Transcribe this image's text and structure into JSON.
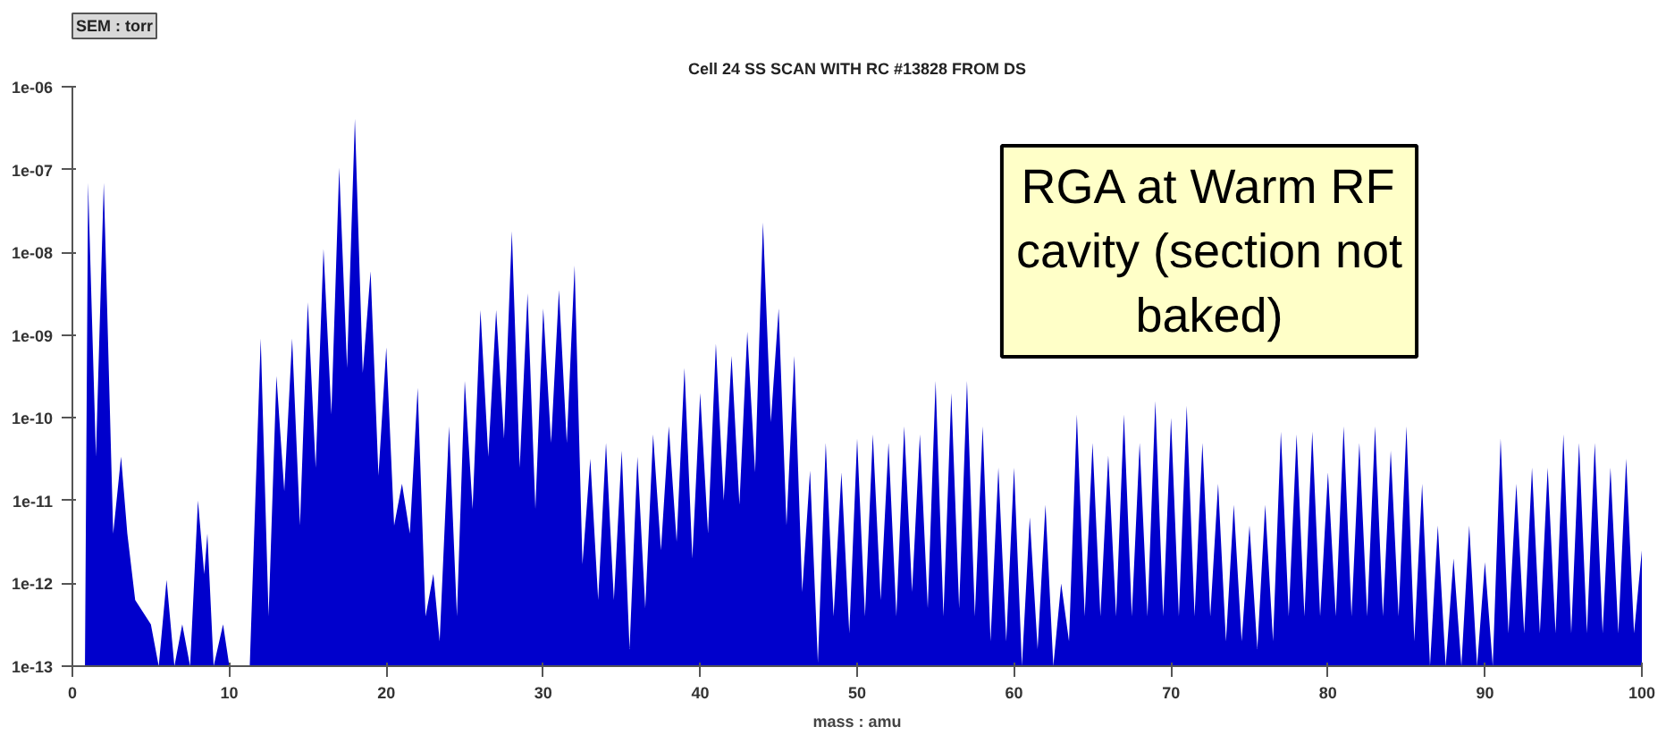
{
  "chart_data": {
    "type": "area",
    "title": "Cell 24 SS SCAN WITH RC #13828 FROM DS",
    "xlabel": "mass : amu",
    "ylabel": "SEM : torr",
    "annotations": [
      "RGA at Warm RF cavity (section not baked)"
    ],
    "log": "y",
    "grid": false,
    "xlim": [
      0,
      100
    ],
    "xticks": [
      0,
      10,
      20,
      30,
      40,
      50,
      60,
      70,
      80,
      90,
      100
    ],
    "ylim": [
      1e-13,
      1e-06
    ],
    "yticks": [
      {
        "value": 1e-13,
        "label": "1e-13"
      },
      {
        "value": 1e-12,
        "label": "1e-12"
      },
      {
        "value": 1e-11,
        "label": "1e-11"
      },
      {
        "value": 1e-10,
        "label": "1e-10"
      },
      {
        "value": 1e-09,
        "label": "1e-09"
      },
      {
        "value": 1e-08,
        "label": "1e-08"
      },
      {
        "value": 1e-07,
        "label": "1e-07"
      },
      {
        "value": 1e-06,
        "label": "1e-06"
      }
    ],
    "x": [
      0.8,
      1,
      1.5,
      2,
      2.6,
      3.1,
      3.5,
      4,
      5,
      5.5,
      6,
      6.5,
      7,
      7.5,
      8,
      8.4,
      8.6,
      9,
      9.6,
      10,
      11.3,
      12,
      12.5,
      13,
      13.5,
      14,
      14.5,
      15,
      15.5,
      16,
      16.5,
      17,
      17.5,
      18,
      18.5,
      19,
      19.5,
      20,
      20.5,
      21,
      21.5,
      22,
      22.5,
      23,
      23.4,
      24,
      24.5,
      25,
      25.5,
      26,
      26.5,
      27,
      27.5,
      28,
      28.5,
      29,
      29.5,
      30,
      30.5,
      31,
      31.5,
      32,
      32.5,
      33,
      33.5,
      34,
      34.5,
      35,
      35.5,
      36,
      36.5,
      37,
      37.5,
      38,
      38.5,
      39,
      39.5,
      40,
      40.5,
      41,
      41.5,
      42,
      42.5,
      43,
      43.5,
      44,
      44.5,
      45,
      45.5,
      46,
      46.5,
      47,
      47.5,
      48,
      48.5,
      49,
      49.5,
      50,
      50.5,
      51,
      51.5,
      52,
      52.5,
      53,
      53.5,
      54,
      54.5,
      55,
      55.5,
      56,
      56.5,
      57,
      57.5,
      58,
      58.5,
      59,
      59.5,
      60,
      60.5,
      61,
      61.5,
      62,
      62.5,
      63,
      63.5,
      64,
      64.5,
      65,
      65.5,
      66,
      66.5,
      67,
      67.5,
      68,
      68.5,
      69,
      69.5,
      70,
      70.5,
      71,
      71.5,
      72,
      72.5,
      73,
      73.5,
      74,
      74.5,
      75,
      75.5,
      76,
      76.5,
      77,
      77.5,
      78,
      78.5,
      79,
      79.5,
      80,
      80.5,
      81,
      81.5,
      82,
      82.5,
      83,
      83.5,
      84,
      84.5,
      85,
      85.5,
      86,
      86.5,
      87,
      87.5,
      88,
      88.5,
      89,
      89.5,
      90,
      90.5,
      91,
      91.5,
      92,
      92.5,
      93,
      93.5,
      94,
      94.5,
      95,
      95.5,
      96,
      96.5,
      97,
      97.5,
      98,
      98.5,
      99,
      99.5,
      100
    ],
    "series": [
      {
        "color": "#0000cc",
        "values": [
          1e-13,
          6.9e-08,
          3.4e-11,
          6.9e-08,
          4e-12,
          3.4e-11,
          4e-12,
          6.3e-13,
          3.2e-13,
          1e-13,
          1.1e-12,
          1e-13,
          3.2e-13,
          1e-13,
          1e-11,
          1.3e-12,
          4e-12,
          1e-13,
          3.2e-13,
          1e-13,
          1e-13,
          9.1e-10,
          4e-13,
          3.2e-10,
          1.3e-11,
          9.1e-10,
          5e-12,
          2.5e-09,
          2.5e-11,
          1.1e-08,
          1.1e-10,
          1.05e-07,
          4e-10,
          4.1e-07,
          3.5e-10,
          5.9e-09,
          2e-11,
          7.1e-10,
          5e-12,
          1.6e-11,
          4e-12,
          2.3e-10,
          4e-13,
          1.3e-12,
          2e-13,
          7.9e-11,
          4e-13,
          2.8e-10,
          7.9e-12,
          2e-09,
          3.4e-11,
          2e-09,
          5.6e-11,
          1.8e-08,
          2.5e-11,
          3.2e-09,
          7.9e-12,
          2.1e-09,
          5e-11,
          3.5e-09,
          5e-11,
          6.9e-09,
          1.7e-12,
          3.2e-11,
          6.3e-13,
          5e-11,
          6.3e-13,
          4e-11,
          1.6e-13,
          3.4e-11,
          5e-13,
          6.3e-11,
          2.5e-12,
          7.9e-11,
          3.2e-12,
          4e-10,
          2e-12,
          2e-10,
          4e-12,
          7.9e-10,
          1e-11,
          5.6e-10,
          8.9e-12,
          1.1e-09,
          2.2e-11,
          2.3e-08,
          8.9e-11,
          2.1e-09,
          5e-12,
          5.6e-10,
          7.9e-13,
          2.3e-11,
          1.1e-13,
          5e-11,
          4e-13,
          2.2e-11,
          2.5e-13,
          5.6e-11,
          4e-13,
          6.3e-11,
          6.3e-13,
          5e-11,
          4e-13,
          7.9e-11,
          7.9e-13,
          6.3e-11,
          5e-13,
          2.8e-10,
          4e-13,
          2e-10,
          5e-13,
          2.8e-10,
          4e-13,
          7.9e-11,
          2e-13,
          2.5e-11,
          2e-13,
          2.5e-11,
          1e-13,
          6.3e-12,
          1.6e-13,
          8.9e-12,
          1e-13,
          1e-12,
          2e-13,
          1.1e-10,
          4e-13,
          5e-11,
          4e-13,
          3.5e-11,
          4e-13,
          1.1e-10,
          4e-13,
          5e-11,
          4e-13,
          1.6e-10,
          4e-13,
          1e-10,
          4e-13,
          1.4e-10,
          4e-13,
          5e-11,
          4e-13,
          1.6e-11,
          2e-13,
          8.9e-12,
          2e-13,
          5e-12,
          1.6e-13,
          8.9e-12,
          2e-13,
          6.8e-11,
          4e-13,
          6.3e-11,
          4e-13,
          6.8e-11,
          4e-13,
          2.2e-11,
          4e-13,
          7.9e-11,
          4e-13,
          5e-11,
          4e-13,
          7.9e-11,
          4e-13,
          4e-11,
          4e-13,
          7.9e-11,
          2e-13,
          1.6e-11,
          1e-13,
          5e-12,
          1e-13,
          2e-12,
          1e-13,
          5e-12,
          1e-13,
          1.8e-12,
          1e-13,
          5.6e-11,
          2.5e-13,
          1.6e-11,
          2.5e-13,
          2.5e-11,
          2.5e-13,
          2.5e-11,
          2.5e-13,
          6.3e-11,
          2.5e-13,
          5e-11,
          2.5e-13,
          5e-11,
          2.5e-13,
          2.5e-11,
          2.5e-13,
          3.2e-11,
          2.5e-13,
          2.5e-12
        ]
      }
    ]
  }
}
